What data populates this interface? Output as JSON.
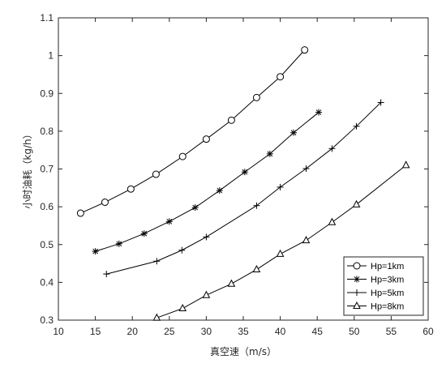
{
  "chart_data": {
    "type": "line",
    "title": "",
    "xlabel": "真空速（m/s）",
    "ylabel": "小时油耗（kg/h）",
    "xlim": [
      10,
      60
    ],
    "ylim": [
      0.3,
      1.1
    ],
    "xticks": [
      "10",
      "15",
      "20",
      "25",
      "30",
      "35",
      "40",
      "45",
      "50",
      "55",
      "60"
    ],
    "yticks": [
      "0.3",
      "0.4",
      "0.5",
      "0.6",
      "0.7",
      "0.8",
      "0.9",
      "1",
      "1.1"
    ],
    "grid": false,
    "legend_position": "bottom-right",
    "line_color": "#000000",
    "series": [
      {
        "name": "Hp=1km",
        "marker": "circle",
        "x": [
          13.0,
          16.3,
          19.8,
          23.2,
          26.8,
          30.0,
          33.4,
          36.8,
          40.0,
          43.3
        ],
        "y": [
          0.583,
          0.612,
          0.647,
          0.686,
          0.733,
          0.779,
          0.829,
          0.889,
          0.944,
          1.015
        ]
      },
      {
        "name": "Hp=3km",
        "marker": "asterisk",
        "x": [
          15.0,
          18.2,
          21.6,
          25.0,
          28.5,
          31.8,
          35.2,
          38.6,
          41.8,
          45.2
        ],
        "y": [
          0.482,
          0.502,
          0.529,
          0.561,
          0.598,
          0.643,
          0.692,
          0.74,
          0.796,
          0.85
        ]
      },
      {
        "name": "Hp=5km",
        "marker": "plus",
        "x": [
          16.5,
          23.3,
          26.7,
          30.0,
          36.8,
          40.0,
          43.5,
          47.0,
          50.3,
          53.6
        ],
        "y": [
          0.422,
          0.456,
          0.485,
          0.52,
          0.603,
          0.652,
          0.701,
          0.754,
          0.813,
          0.876
        ]
      },
      {
        "name": "Hp=8km",
        "marker": "triangle",
        "x": [
          23.3,
          26.8,
          30.0,
          33.4,
          36.8,
          40.0,
          43.5,
          47.0,
          50.3,
          57.0
        ],
        "y": [
          0.306,
          0.331,
          0.366,
          0.396,
          0.434,
          0.475,
          0.511,
          0.559,
          0.606,
          0.71
        ]
      }
    ]
  }
}
